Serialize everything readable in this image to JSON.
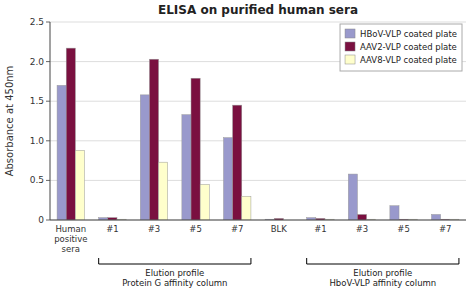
{
  "chart_data": {
    "type": "bar",
    "title": "ELISA on purified human sera",
    "y_label": "Absorbance at 450nm",
    "categories": [
      "Human\npositive\nsera",
      "#1",
      "#3",
      "#5",
      "#7",
      "BLK",
      "#1",
      "#3",
      "#5",
      "#7"
    ],
    "series": [
      {
        "name": "HBoV-VLP coated plate",
        "color": "#9999cc",
        "values": [
          1.7,
          0.03,
          1.58,
          1.33,
          1.04,
          0.01,
          0.03,
          0.58,
          0.18,
          0.07
        ]
      },
      {
        "name": "AAV2-VLP coated plate",
        "color": "#7a1040",
        "values": [
          2.17,
          0.03,
          2.03,
          1.79,
          1.45,
          0.02,
          0.02,
          0.07,
          0.01,
          0.01
        ]
      },
      {
        "name": "AAV8-VLP coated plate",
        "color": "#ffffcc",
        "values": [
          0.88,
          0.01,
          0.73,
          0.45,
          0.3,
          0.0,
          0.01,
          0.01,
          0.01,
          0.01
        ]
      }
    ],
    "ylim": [
      0,
      2.5
    ],
    "yticks": [
      0,
      0.5,
      {
        "value": 1,
        "label": "1.0"
      },
      1.5,
      {
        "value": 2,
        "label": "2.0"
      },
      2.5
    ],
    "grid": true,
    "legend": "upper right",
    "annotations": [
      {
        "text": "Elution profile\nProtein G affinity column",
        "span": [
          1,
          4
        ]
      },
      {
        "text": "Elution profile\nHboV-VLP affinity column",
        "span": [
          6,
          9
        ]
      }
    ]
  }
}
